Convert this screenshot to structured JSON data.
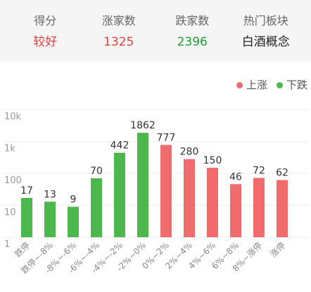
{
  "header": {
    "stats": [
      {
        "label": "得分",
        "value": "较好",
        "color": "#e84141"
      },
      {
        "label": "涨家数",
        "value": "1325",
        "color": "#e84141"
      },
      {
        "label": "跌家数",
        "value": "2396",
        "color": "#1f9a35"
      },
      {
        "label": "热门板块",
        "value": "白酒概念",
        "color": "#222222"
      }
    ]
  },
  "chart_data": {
    "type": "bar",
    "categories": [
      "跌停",
      "跌停~-8%",
      "-8%~-6%",
      "-6%~-4%",
      "-4%~-2%",
      "-2%~0%",
      "0%~2%",
      "2%~4%",
      "4%~6%",
      "6%~8%",
      "8%~涨停",
      "涨停"
    ],
    "series": [
      {
        "name": "上涨",
        "color": "#f06b6b",
        "values": [
          null,
          null,
          null,
          null,
          null,
          null,
          777,
          280,
          150,
          46,
          72,
          62
        ]
      },
      {
        "name": "下跌",
        "color": "#4cb84c",
        "values": [
          17,
          13,
          9,
          70,
          442,
          1862,
          null,
          null,
          null,
          null,
          null,
          null
        ]
      }
    ],
    "y_scale": "log",
    "ylim": [
      1,
      10000
    ],
    "yticks": [
      1,
      10,
      100,
      1000,
      10000
    ],
    "ytick_labels": [
      "1",
      "10",
      "100",
      "1k",
      "10k"
    ],
    "grid": true,
    "legend": "top-right",
    "value_labels": true
  }
}
